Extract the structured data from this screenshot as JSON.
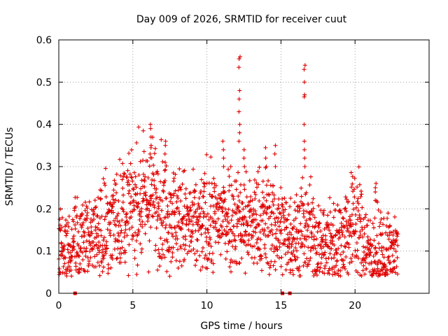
{
  "chart_data": {
    "type": "scatter",
    "title": "Day 009 of 2026, SRMTID for receiver cuut",
    "xlabel": "GPS time / hours",
    "ylabel": "SRMTID / TECUs",
    "xlim": [
      0,
      25
    ],
    "ylim": [
      0,
      0.6
    ],
    "x_ticks": [
      0,
      5,
      10,
      15,
      20
    ],
    "y_ticks": [
      0,
      0.1,
      0.2,
      0.3,
      0.4,
      0.5,
      0.6
    ],
    "x_tick_labels": [
      "0",
      "5",
      "10",
      "15",
      "20"
    ],
    "y_tick_labels": [
      "0",
      "0.1",
      "0.2",
      "0.3",
      "0.4",
      "0.5",
      "0.6"
    ],
    "grid": true,
    "marker": "+",
    "series_color": "#e00000",
    "trend": [
      [
        0.0,
        0.09
      ],
      [
        0.5,
        0.1
      ],
      [
        1.0,
        0.12
      ],
      [
        1.5,
        0.12
      ],
      [
        2.0,
        0.14
      ],
      [
        2.5,
        0.12
      ],
      [
        3.0,
        0.16
      ],
      [
        3.5,
        0.17
      ],
      [
        4.0,
        0.18
      ],
      [
        4.5,
        0.19
      ],
      [
        5.0,
        0.21
      ],
      [
        5.5,
        0.21
      ],
      [
        6.0,
        0.22
      ],
      [
        6.5,
        0.23
      ],
      [
        7.0,
        0.2
      ],
      [
        7.5,
        0.19
      ],
      [
        8.0,
        0.18
      ],
      [
        8.5,
        0.17
      ],
      [
        9.0,
        0.15
      ],
      [
        9.5,
        0.16
      ],
      [
        10.0,
        0.17
      ],
      [
        10.5,
        0.17
      ],
      [
        11.0,
        0.18
      ],
      [
        11.5,
        0.19
      ],
      [
        12.0,
        0.18
      ],
      [
        12.5,
        0.17
      ],
      [
        13.0,
        0.16
      ],
      [
        13.5,
        0.17
      ],
      [
        14.0,
        0.17
      ],
      [
        14.5,
        0.16
      ],
      [
        15.0,
        0.15
      ],
      [
        15.5,
        0.14
      ],
      [
        16.0,
        0.13
      ],
      [
        16.5,
        0.15
      ],
      [
        17.0,
        0.14
      ],
      [
        17.5,
        0.12
      ],
      [
        18.0,
        0.12
      ],
      [
        18.5,
        0.12
      ],
      [
        19.0,
        0.13
      ],
      [
        19.5,
        0.15
      ],
      [
        20.0,
        0.18
      ],
      [
        20.5,
        0.14
      ],
      [
        21.0,
        0.1
      ],
      [
        21.5,
        0.1
      ],
      [
        22.0,
        0.09
      ],
      [
        22.5,
        0.09
      ],
      [
        22.9,
        0.1
      ]
    ],
    "spikes": [
      {
        "x": 6.2,
        "values": [
          0.33,
          0.35,
          0.37,
          0.39,
          0.4
        ]
      },
      {
        "x": 7.2,
        "values": [
          0.31,
          0.33,
          0.35,
          0.36
        ]
      },
      {
        "x": 11.1,
        "values": [
          0.3,
          0.32,
          0.34,
          0.36
        ]
      },
      {
        "x": 12.2,
        "values": [
          0.36,
          0.38,
          0.4,
          0.43,
          0.46,
          0.48,
          0.535,
          0.555,
          0.56
        ]
      },
      {
        "x": 12.5,
        "values": [
          0.3,
          0.32,
          0.34
        ]
      },
      {
        "x": 14.0,
        "values": [
          0.3,
          0.32,
          0.345
        ]
      },
      {
        "x": 14.6,
        "values": [
          0.3,
          0.33,
          0.35
        ]
      },
      {
        "x": 16.6,
        "values": [
          0.3,
          0.32,
          0.34,
          0.36,
          0.4,
          0.465,
          0.47,
          0.5,
          0.53,
          0.54
        ]
      },
      {
        "x": 21.4,
        "values": [
          0.22,
          0.24,
          0.25,
          0.26
        ]
      }
    ],
    "zero_markers": [
      1.1,
      15.1,
      15.6
    ]
  }
}
